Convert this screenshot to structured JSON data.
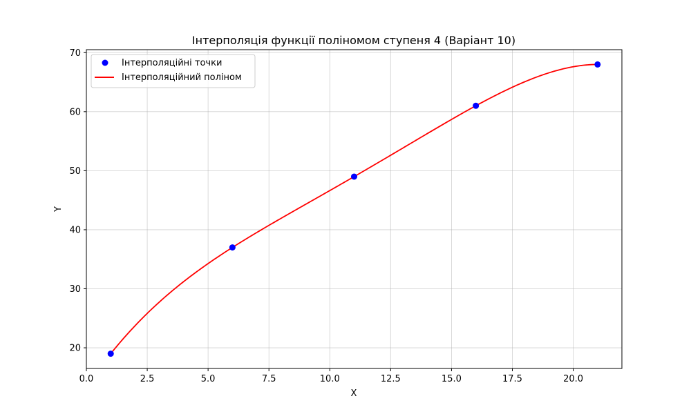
{
  "chart_data": {
    "type": "line",
    "title": "Інтерполяція функції поліномом ступеня 4 (Варіант 10)",
    "xlabel": "X",
    "ylabel": "Y",
    "xlim": [
      0.0,
      22.0
    ],
    "ylim": [
      16.5,
      70.5
    ],
    "xticks": [
      0.0,
      2.5,
      5.0,
      7.5,
      10.0,
      12.5,
      15.0,
      17.5,
      20.0
    ],
    "xtick_labels": [
      "0.0",
      "2.5",
      "5.0",
      "7.5",
      "10.0",
      "12.5",
      "15.0",
      "17.5",
      "20.0"
    ],
    "yticks": [
      20,
      30,
      40,
      50,
      60,
      70
    ],
    "ytick_labels": [
      "20",
      "30",
      "40",
      "50",
      "60",
      "70"
    ],
    "grid": true,
    "legend_position": "top-left",
    "series": [
      {
        "name": "Інтерполяційні точки",
        "kind": "scatter",
        "color": "#0000ff",
        "x": [
          1,
          6,
          11,
          16,
          21
        ],
        "y": [
          19,
          37,
          49,
          61,
          68
        ]
      },
      {
        "name": "Інтерполяційний поліном",
        "kind": "line",
        "color": "#ff0000",
        "polynomial_through_points": true,
        "x_range": [
          1,
          21
        ]
      }
    ]
  }
}
